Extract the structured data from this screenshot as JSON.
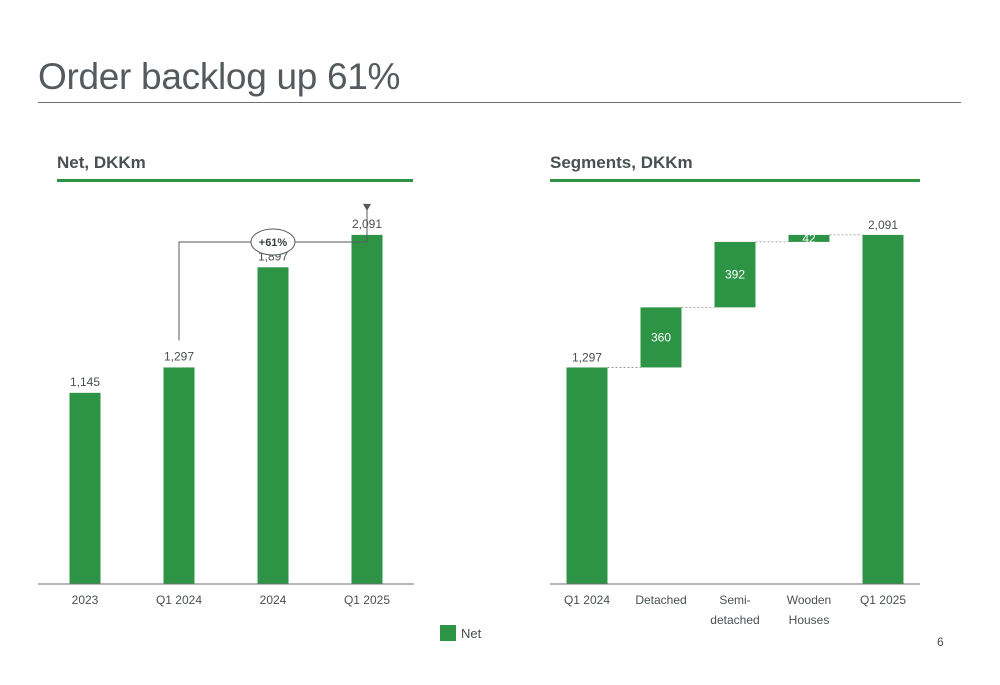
{
  "page": {
    "title": "Order backlog up 61%",
    "page_number": "6"
  },
  "colors": {
    "bar": "#2e9445",
    "axis": "#6b6f72",
    "text": "#4a4f52"
  },
  "legend": {
    "label": "Net",
    "color": "#2e9445"
  },
  "chart_data": [
    {
      "type": "bar",
      "title": "Net, DKKm",
      "categories": [
        "2023",
        "Q1 2024",
        "2024",
        "Q1 2025"
      ],
      "values": [
        1145,
        1297,
        1897,
        2091
      ],
      "value_labels": [
        "1,145",
        "1,297",
        "1,897",
        "2,091"
      ],
      "series": [
        {
          "name": "Net",
          "values": [
            1145,
            1297,
            1897,
            2091
          ]
        }
      ],
      "ylim": [
        0,
        2300
      ],
      "annotation": {
        "text": "+61%",
        "from": "Q1 2024",
        "to": "Q1 2025"
      },
      "grid": false
    },
    {
      "type": "bar",
      "subtype": "waterfall",
      "title": "Segments, DKKm",
      "categories": [
        "Q1 2024",
        "Detached",
        "Semi-\ndetached",
        "Wooden\nHouses",
        "Q1 2025"
      ],
      "steps": [
        {
          "kind": "total",
          "value": 1297,
          "label": "1,297"
        },
        {
          "kind": "delta",
          "value": 360,
          "label": "360"
        },
        {
          "kind": "delta",
          "value": 392,
          "label": "392"
        },
        {
          "kind": "delta",
          "value": 42,
          "label": "42"
        },
        {
          "kind": "total",
          "value": 2091,
          "label": "2,091"
        }
      ],
      "ylim": [
        0,
        2300
      ],
      "grid": false
    }
  ]
}
